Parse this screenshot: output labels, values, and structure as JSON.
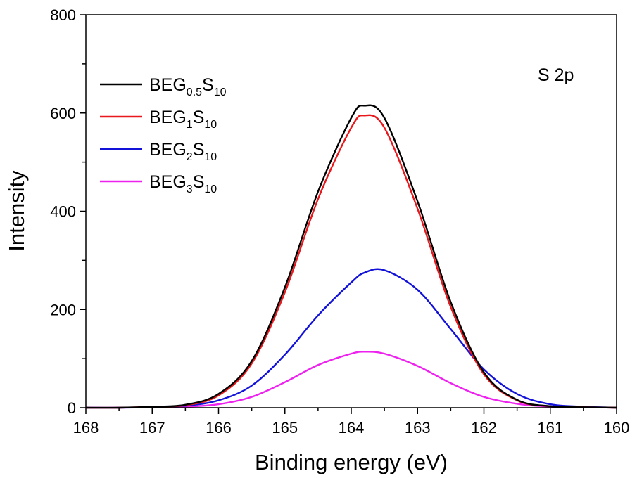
{
  "chart_data": {
    "type": "line",
    "title": "",
    "xlabel": "Binding energy (eV)",
    "ylabel": "Intensity",
    "xlim": [
      168,
      160
    ],
    "ylim": [
      0,
      800
    ],
    "x_reversed": true,
    "xticks": [
      168,
      167,
      166,
      165,
      164,
      163,
      162,
      161,
      160
    ],
    "yticks": [
      0,
      200,
      400,
      600,
      800
    ],
    "grid": false,
    "legend_position": "top-left",
    "annotation": "S 2p",
    "x": [
      168.0,
      167.5,
      167.0,
      166.5,
      166.0,
      165.5,
      165.0,
      164.5,
      164.0,
      163.8,
      163.5,
      163.0,
      162.5,
      162.0,
      161.5,
      161.0,
      160.5,
      160.0
    ],
    "series": [
      {
        "name": "BEG0.5S10",
        "legend_base": "BEG",
        "legend_sub1": "0.5",
        "legend_mid": "S",
        "legend_sub2": "10",
        "color": "#000000",
        "values": [
          0,
          0,
          2,
          6,
          28,
          95,
          245,
          440,
          590,
          615,
          590,
          420,
          215,
          72,
          16,
          3,
          1,
          0
        ]
      },
      {
        "name": "BEG1S10",
        "legend_base": "BEG",
        "legend_sub1": "1",
        "legend_mid": "S",
        "legend_sub2": "10",
        "color": "#e8181c",
        "values": [
          0,
          0,
          2,
          5,
          25,
          90,
          235,
          425,
          570,
          595,
          570,
          405,
          205,
          68,
          15,
          3,
          1,
          0
        ]
      },
      {
        "name": "BEG2S10",
        "legend_base": "BEG",
        "legend_sub1": "2",
        "legend_mid": "S",
        "legend_sub2": "10",
        "color": "#1212d8",
        "values": [
          0,
          0,
          1,
          4,
          15,
          45,
          108,
          188,
          255,
          275,
          280,
          240,
          160,
          78,
          28,
          7,
          2,
          0
        ]
      },
      {
        "name": "BEG3S10",
        "legend_base": "BEG",
        "legend_sub1": "3",
        "legend_mid": "S",
        "legend_sub2": "10",
        "color": "#ee22ee",
        "values": [
          0,
          0,
          1,
          2,
          7,
          22,
          52,
          87,
          110,
          114,
          110,
          85,
          50,
          22,
          8,
          2,
          1,
          0
        ]
      }
    ]
  }
}
